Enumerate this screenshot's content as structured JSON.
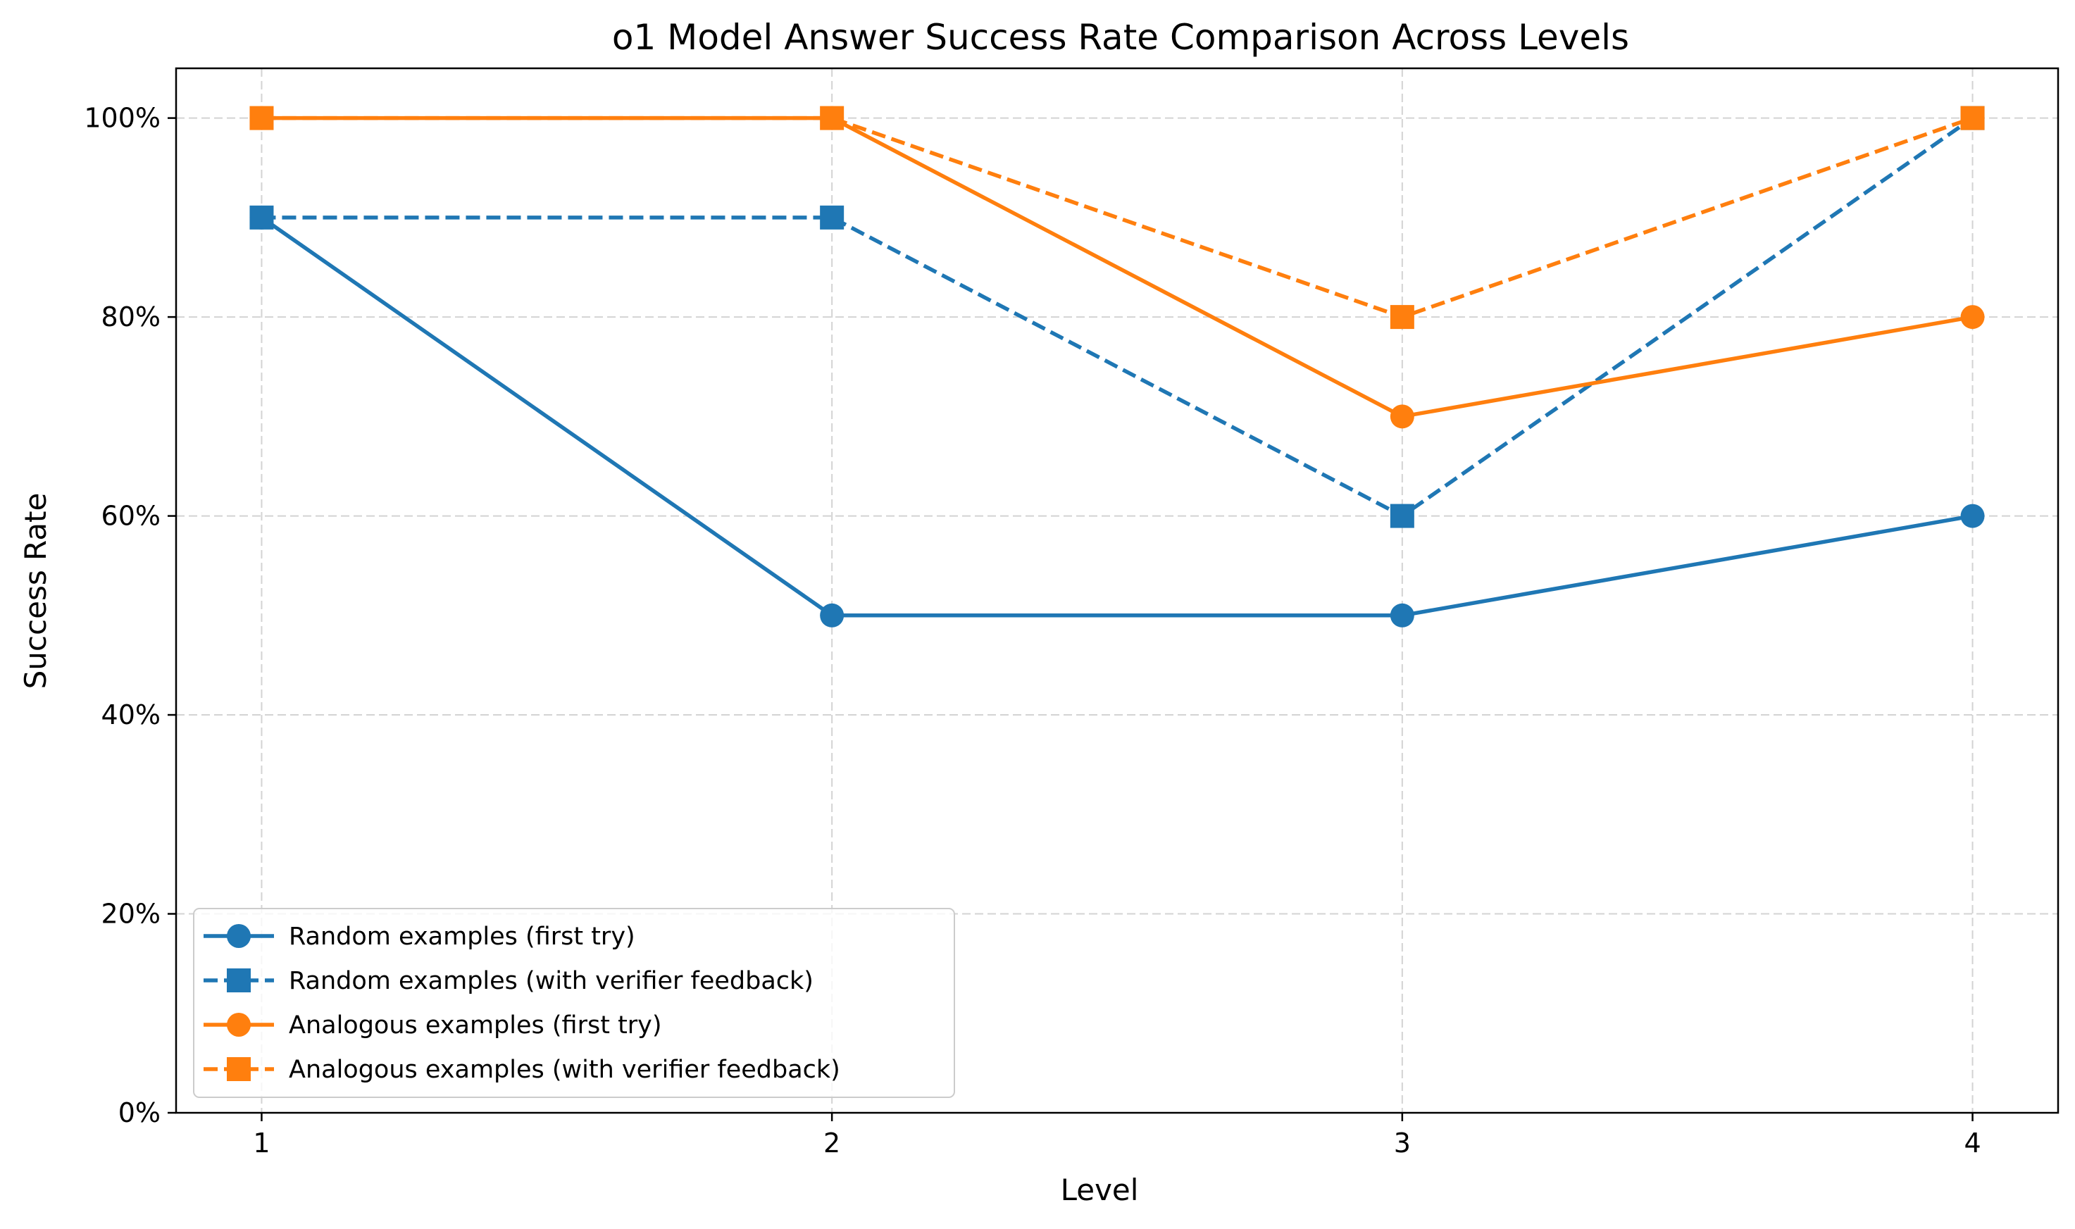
{
  "chart_data": {
    "type": "line",
    "title": "o1 Model Answer Success Rate Comparison Across Levels",
    "xlabel": "Level",
    "ylabel": "Success Rate",
    "x": [
      1,
      2,
      3,
      4
    ],
    "x_tick_labels": [
      "1",
      "2",
      "3",
      "4"
    ],
    "xlim": [
      0.85,
      4.15
    ],
    "ylim": [
      0,
      105
    ],
    "y_ticks": [
      0,
      20,
      40,
      60,
      80,
      100
    ],
    "y_tick_labels": [
      "0%",
      "20%",
      "40%",
      "60%",
      "80%",
      "100%"
    ],
    "grid": true,
    "legend_position": "lower-left",
    "series": [
      {
        "name": "Random examples (first try)",
        "values": [
          90,
          50,
          50,
          60
        ],
        "color": "#1f77b4",
        "line_style": "solid",
        "marker": "circle"
      },
      {
        "name": "Random examples (with verifier feedback)",
        "values": [
          90,
          90,
          60,
          100
        ],
        "color": "#1f77b4",
        "line_style": "dashed",
        "marker": "square"
      },
      {
        "name": "Analogous examples (first try)",
        "values": [
          100,
          100,
          70,
          80
        ],
        "color": "#ff7f0e",
        "line_style": "solid",
        "marker": "circle"
      },
      {
        "name": "Analogous examples (with verifier feedback)",
        "values": [
          100,
          100,
          80,
          100
        ],
        "color": "#ff7f0e",
        "line_style": "dashed",
        "marker": "square"
      }
    ]
  }
}
